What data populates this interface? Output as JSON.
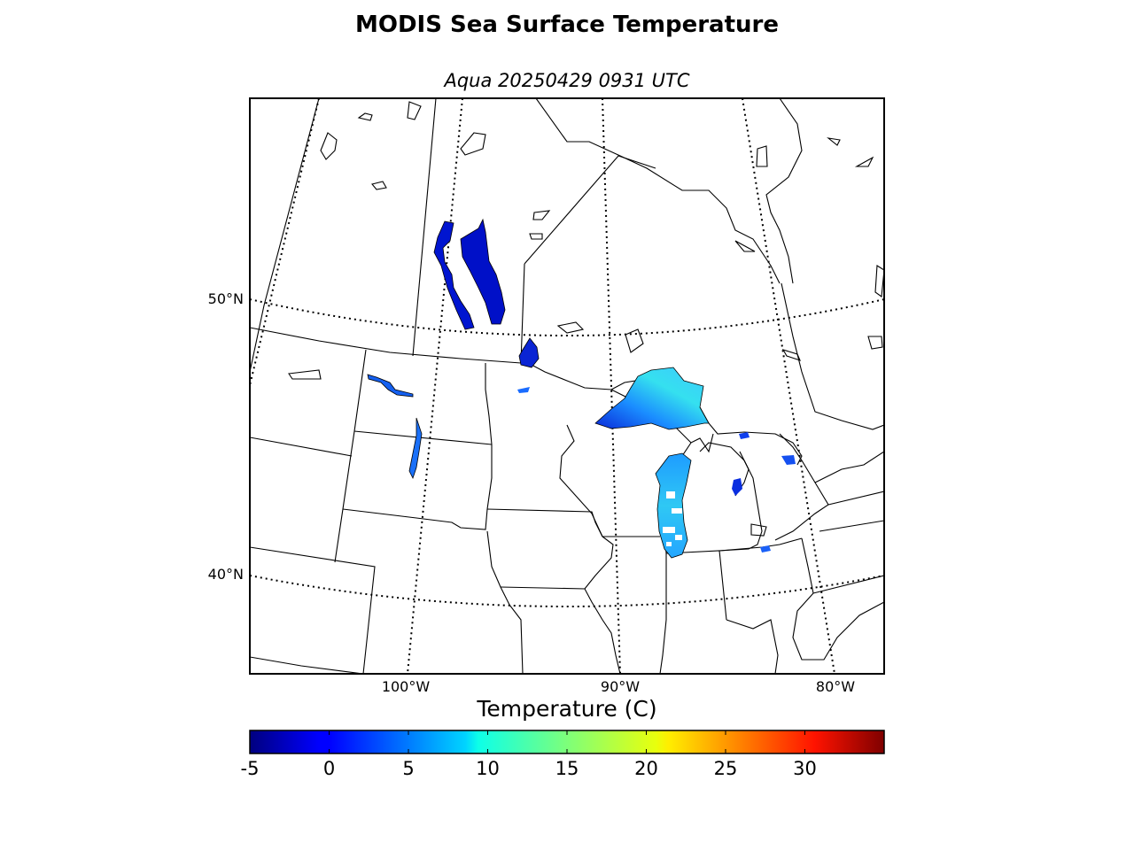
{
  "title": "MODIS Sea Surface Temperature",
  "subtitle": "Aqua 20250429 0931 UTC",
  "map": {
    "lat_labels": [
      "50°N",
      "40°N"
    ],
    "lon_labels": [
      "100°W",
      "90°W",
      "80°W"
    ],
    "lat_lines_deg": [
      50,
      40
    ],
    "lon_lines_deg": [
      -100,
      -90,
      -80
    ],
    "gridline_style": "dotted",
    "land_color": "#ffffff",
    "coastline_color": "#000000"
  },
  "colorbar": {
    "label": "Temperature (C)",
    "colormap": "jet",
    "range": [
      -5,
      35
    ],
    "ticks": [
      -5,
      0,
      5,
      10,
      15,
      20,
      25,
      30
    ],
    "tick_labels": [
      "-5",
      "0",
      "5",
      "10",
      "15",
      "20",
      "25",
      "30"
    ]
  },
  "water_bodies_shown": [
    {
      "name": "Lake Superior",
      "temp_range_c": [
        2,
        12
      ]
    },
    {
      "name": "Lake Michigan",
      "temp_range_c": [
        2,
        9
      ]
    },
    {
      "name": "Lake Winnipeg",
      "temp_range_c": [
        -4,
        -2
      ]
    },
    {
      "name": "Lake of the Woods",
      "temp_range_c": [
        -3,
        0
      ]
    },
    {
      "name": "Lake Huron (partial)",
      "temp_range_c": [
        0,
        5
      ]
    },
    {
      "name": "Lake Sakakawea",
      "temp_range_c": [
        3,
        6
      ]
    }
  ]
}
